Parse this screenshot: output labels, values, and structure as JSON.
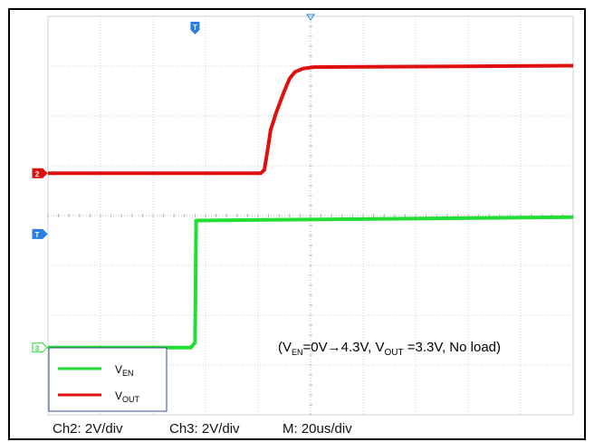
{
  "chart_data": {
    "type": "line",
    "title": "",
    "xlabel": "",
    "ylabel": "",
    "grid": true,
    "x_range_div": [
      0,
      10
    ],
    "y_range_div": [
      -4,
      4
    ],
    "trigger_time_div": 2.8,
    "series": [
      {
        "name": "V_EN",
        "color": "#22dd33",
        "channel": "3",
        "points": [
          [
            0,
            -2.65
          ],
          [
            2.72,
            -2.65
          ],
          [
            2.8,
            -2.55
          ],
          [
            2.82,
            -0.1
          ],
          [
            10,
            -0.03
          ]
        ]
      },
      {
        "name": "V_OUT",
        "color": "#e01010",
        "channel": "2",
        "points": [
          [
            0,
            0.85
          ],
          [
            4.05,
            0.85
          ],
          [
            4.12,
            0.92
          ],
          [
            4.18,
            1.3
          ],
          [
            4.24,
            1.72
          ],
          [
            4.35,
            2.08
          ],
          [
            4.5,
            2.5
          ],
          [
            4.6,
            2.75
          ],
          [
            4.7,
            2.88
          ],
          [
            4.85,
            2.95
          ],
          [
            5.05,
            2.98
          ],
          [
            10,
            3.01
          ]
        ]
      }
    ],
    "channel_markers": [
      {
        "label": "2",
        "color": "#e01010",
        "level_div": 0.85
      },
      {
        "label": "T",
        "color": "#2a7de1",
        "level_div": -0.37
      },
      {
        "label": "3",
        "color": "#22dd33",
        "level_div": -2.65
      }
    ],
    "trigger_marker": {
      "label": "T",
      "color": "#2a7de1"
    },
    "legend": {
      "position": "bottom-left",
      "entries": [
        {
          "main": "V",
          "sub": "EN",
          "color": "#22dd33"
        },
        {
          "main": "V",
          "sub": "OUT",
          "color": "#e01010"
        }
      ]
    },
    "annotation": {
      "open": "(V",
      "sub1": "EN",
      "mid": "=0V→4.3V, V",
      "sub2": "OUT",
      "rest": " =3.3V, No load)"
    },
    "scale_labels": [
      "Ch2: 2V/div",
      "Ch3: 2V/div",
      "M: 20us/div"
    ]
  }
}
